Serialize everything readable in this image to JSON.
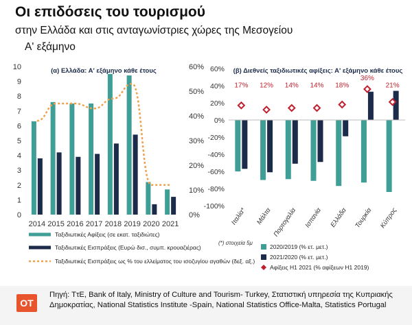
{
  "header": {
    "title": "Οι επιδόσεις του τουρισμού",
    "subtitle": "στην Ελλάδα και στις ανταγωνίστριες χώρες της Μεσογείου",
    "period": "Α' εξάμηνο"
  },
  "colors": {
    "teal": "#3f9e95",
    "navy": "#1c2b4a",
    "orange": "#f0a04b",
    "diamond": "#c0202e"
  },
  "chart_data": [
    {
      "type": "bar",
      "title": "(α) Ελλάδα: Α' εξάμηνο κάθε έτους",
      "categories": [
        "2014",
        "2015",
        "2016",
        "2017",
        "2018",
        "2019",
        "2020",
        "2021"
      ],
      "ylim": [
        0,
        10
      ],
      "y2lim": [
        0,
        60
      ],
      "y_ticks": [
        "0",
        "1",
        "2",
        "3",
        "4",
        "5",
        "6",
        "7",
        "8",
        "9",
        "10"
      ],
      "y2_ticks": [
        "0%",
        "10%",
        "20%",
        "30%",
        "40%",
        "50%",
        "60%"
      ],
      "series": [
        {
          "name": "Ταξιδιωτικές Αφίξεις (σε εκατ. ταξιδιώτες)",
          "type": "bar",
          "color": "#3f9e95",
          "values": [
            6.3,
            7.6,
            7.5,
            7.5,
            9.5,
            9.4,
            2.2,
            1.7
          ]
        },
        {
          "name": "Ταξιδιωτικές Εισπράξεις (Ευρώ δισ., συμπ. κρουαζιέρας)",
          "type": "bar",
          "color": "#1c2b4a",
          "values": [
            3.8,
            4.2,
            3.9,
            4.1,
            4.8,
            5.4,
            0.7,
            1.2
          ]
        },
        {
          "name": "Ταξιδιωτικές Εισπράξεις ως % του ελλείματος του ισοζυγίου αγαθών (δεξ. αξ.)",
          "type": "line",
          "axis": "right",
          "color": "#f0a04b",
          "values": [
            38,
            45,
            45,
            43,
            47,
            53,
            12,
            12
          ]
        }
      ],
      "legend": [
        "Ταξιδιωτικές Αφίξεις (σε εκατ. ταξιδιώτες)",
        "Ταξιδιωτικές Εισπράξεις (Ευρώ δισ., συμπ. κρουαζιέρας)",
        "Ταξιδιωτικές Εισπράξεις ως % του ελλείματος του ισοζυγίου αγαθών (δεξ. αξ.)"
      ]
    },
    {
      "type": "bar",
      "title": "(β) Διεθνείς ταξιδιωτικές αφίξεις: Α' εξάμηνο κάθε έτους",
      "categories": [
        "Ιταλία*",
        "Μάλτα",
        "Πορτογαλία",
        "Ισπανία",
        "Ελλάδα",
        "Τουρκία",
        "Κύπρος"
      ],
      "ylim": [
        -100,
        60
      ],
      "y_ticks": [
        "-100%",
        "-80%",
        "-60%",
        "-40%",
        "-20%",
        "0%",
        "20%",
        "40%",
        "60%"
      ],
      "series": [
        {
          "name": "2020/2019 (% ετ. μετ.)",
          "type": "bar",
          "color": "#3f9e95",
          "values": [
            -60,
            -70,
            -69,
            -71,
            -77,
            -73,
            -84
          ]
        },
        {
          "name": "2021/2020 (% ετ. μετ.)",
          "type": "bar",
          "color": "#1c2b4a",
          "values": [
            -57,
            -61,
            -51,
            -49,
            -19,
            33,
            34
          ]
        },
        {
          "name": "Αφίξεις Η1 2021 (% αφίξεων Η1 2019)",
          "type": "marker",
          "color": "#c0202e",
          "values": [
            17,
            12,
            14,
            14,
            18,
            36,
            21
          ],
          "labels": [
            "17%",
            "12%",
            "14%",
            "14%",
            "18%",
            "36%",
            "21%"
          ]
        }
      ],
      "note": "(*) στοιχεία 5μ",
      "legend": [
        "2020/2019 (% ετ. μετ.)",
        "2021/2020 (% ετ. μετ.)",
        "Αφίξεις Η1 2021 (% αφίξεων Η1 2019)"
      ]
    }
  ],
  "footer": {
    "logo": "ΟΤ",
    "source": "Πηγή: ΤτΕ, Bank of Italy, Ministry of Culture and Tourism- Turkey, Στατιστική υπηρεσία της Κυπριακής Δημοκρατίας,  National Statistics Institute -Spain, National Statistics Office-Malta, Statistics Portugal"
  }
}
